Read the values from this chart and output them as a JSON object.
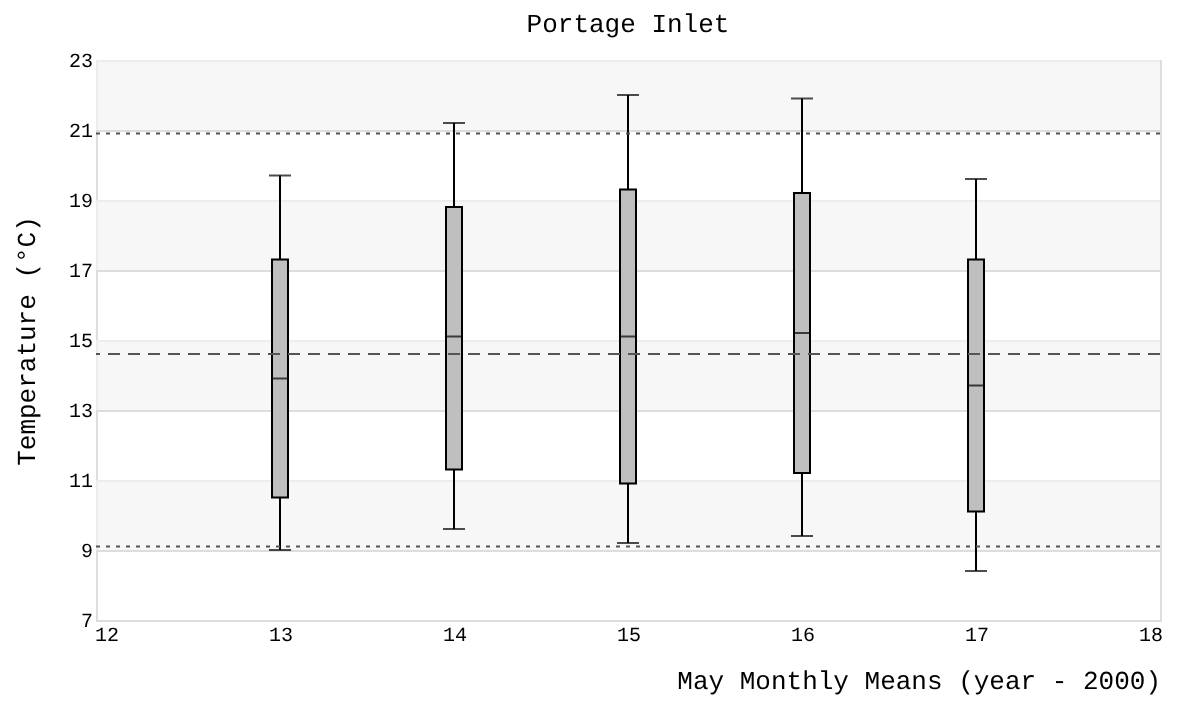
{
  "chart_data": {
    "type": "box",
    "title": "Portage Inlet",
    "xlabel": "May Monthly Means (year - 2000)",
    "ylabel": "Temperature (°C)",
    "x": [
      13,
      14,
      15,
      16,
      17
    ],
    "boxes": [
      {
        "low": 9.0,
        "q1": 10.5,
        "median": 13.9,
        "q3": 17.3,
        "high": 19.7
      },
      {
        "low": 9.6,
        "q1": 11.3,
        "median": 15.1,
        "q3": 18.8,
        "high": 21.2
      },
      {
        "low": 9.2,
        "q1": 10.9,
        "median": 15.1,
        "q3": 19.3,
        "high": 22.0
      },
      {
        "low": 9.4,
        "q1": 11.2,
        "median": 15.2,
        "q3": 19.2,
        "high": 21.9
      },
      {
        "low": 8.4,
        "q1": 10.1,
        "median": 13.7,
        "q3": 17.3,
        "high": 19.6
      }
    ],
    "color": "#bfbfbf",
    "xlim": [
      12,
      18
    ],
    "xticks": [
      12,
      13,
      14,
      15,
      16,
      17,
      18
    ],
    "ylim": [
      7,
      23
    ],
    "yticks": [
      7,
      9,
      11,
      13,
      15,
      17,
      19,
      21,
      23
    ],
    "grid": "y",
    "ref_lines": [
      {
        "axis": "y",
        "value": 20.9,
        "color": "#555555",
        "line_style": "dotted"
      },
      {
        "axis": "y",
        "value": 14.6,
        "color": "#555555",
        "line_style": "dashed"
      },
      {
        "axis": "y",
        "value": 9.1,
        "color": "#555555",
        "line_style": "dotted"
      }
    ]
  }
}
